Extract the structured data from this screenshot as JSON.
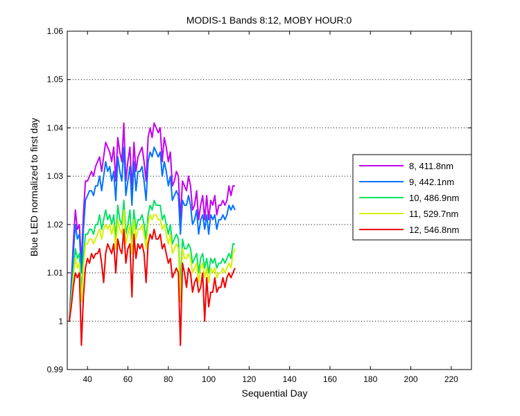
{
  "chart_data": {
    "type": "line",
    "title": "MODIS-1 Bands 8:12, MOBY HOUR:0",
    "xlabel": "Sequential Day",
    "ylabel": "Blue LED normalized to first day",
    "xlim": [
      30,
      230
    ],
    "ylim": [
      0.99,
      1.06
    ],
    "xticks": [
      40,
      60,
      80,
      100,
      120,
      140,
      160,
      180,
      200,
      220
    ],
    "yticks": [
      "0.99",
      "1",
      "1.01",
      "1.02",
      "1.03",
      "1.04",
      "1.05",
      "1.06"
    ],
    "ytick_values": [
      0.99,
      1.0,
      1.01,
      1.02,
      1.03,
      1.04,
      1.05,
      1.06
    ],
    "grid": "y-dotted",
    "legend_position": "right",
    "x": [
      31,
      32,
      33,
      34,
      35,
      36,
      37,
      38,
      39,
      40,
      41,
      42,
      43,
      44,
      45,
      46,
      47,
      48,
      49,
      50,
      51,
      52,
      53,
      54,
      55,
      56,
      57,
      58,
      59,
      60,
      61,
      62,
      63,
      64,
      65,
      66,
      67,
      68,
      69,
      70,
      71,
      72,
      73,
      74,
      75,
      76,
      77,
      78,
      79,
      80,
      81,
      82,
      83,
      84,
      85,
      86,
      87,
      88,
      89,
      90,
      91,
      92,
      93,
      94,
      95,
      96,
      97,
      98,
      99,
      100,
      101,
      102,
      103,
      104,
      105,
      106,
      107,
      108,
      109,
      110,
      111,
      112,
      113
    ],
    "series": [
      {
        "name": "8, 411.8nm",
        "color": "#c000f0",
        "values": [
          1.0,
          1.008,
          1.016,
          1.023,
          1.019,
          1.02,
          1.012,
          1.022,
          1.029,
          1.029,
          1.03,
          1.031,
          1.03,
          1.032,
          1.033,
          1.034,
          1.031,
          1.034,
          1.037,
          1.036,
          1.035,
          1.033,
          1.036,
          1.029,
          1.038,
          1.035,
          1.033,
          1.041,
          1.029,
          1.033,
          1.036,
          1.027,
          1.037,
          1.031,
          1.034,
          1.035,
          1.036,
          1.033,
          1.029,
          1.038,
          1.04,
          1.038,
          1.041,
          1.04,
          1.039,
          1.04,
          1.033,
          1.038,
          1.036,
          1.033,
          1.035,
          1.028,
          1.029,
          1.031,
          1.03,
          1.021,
          1.029,
          1.028,
          1.027,
          1.03,
          1.028,
          1.023,
          1.024,
          1.027,
          1.021,
          1.024,
          1.026,
          1.021,
          1.026,
          1.021,
          1.025,
          1.024,
          1.026,
          1.022,
          1.024,
          1.024,
          1.025,
          1.024,
          1.025,
          1.028,
          1.026,
          1.028,
          1.028
        ]
      },
      {
        "name": "9, 442.1nm",
        "color": "#0070ff",
        "values": [
          1.0,
          1.007,
          1.014,
          1.02,
          1.017,
          1.018,
          1.01,
          1.019,
          1.025,
          1.026,
          1.027,
          1.027,
          1.026,
          1.028,
          1.028,
          1.03,
          1.027,
          1.03,
          1.033,
          1.031,
          1.032,
          1.029,
          1.031,
          1.025,
          1.034,
          1.031,
          1.029,
          1.036,
          1.026,
          1.029,
          1.032,
          1.024,
          1.033,
          1.027,
          1.031,
          1.031,
          1.032,
          1.029,
          1.025,
          1.033,
          1.035,
          1.034,
          1.036,
          1.035,
          1.034,
          1.035,
          1.03,
          1.033,
          1.031,
          1.028,
          1.03,
          1.025,
          1.026,
          1.027,
          1.026,
          1.018,
          1.025,
          1.024,
          1.024,
          1.026,
          1.024,
          1.02,
          1.021,
          1.023,
          1.018,
          1.021,
          1.022,
          1.019,
          1.022,
          1.018,
          1.022,
          1.021,
          1.022,
          1.019,
          1.021,
          1.021,
          1.022,
          1.021,
          1.022,
          1.024,
          1.023,
          1.024,
          1.023
        ]
      },
      {
        "name": "10, 486.9nm",
        "color": "#00e060",
        "values": [
          1.0,
          1.005,
          1.01,
          1.015,
          1.013,
          1.014,
          1.006,
          1.013,
          1.018,
          1.018,
          1.019,
          1.019,
          1.018,
          1.02,
          1.02,
          1.022,
          1.019,
          1.021,
          1.023,
          1.021,
          1.022,
          1.02,
          1.022,
          1.017,
          1.024,
          1.021,
          1.02,
          1.025,
          1.018,
          1.02,
          1.023,
          1.016,
          1.023,
          1.019,
          1.021,
          1.021,
          1.022,
          1.02,
          1.017,
          1.022,
          1.024,
          1.023,
          1.025,
          1.024,
          1.024,
          1.024,
          1.021,
          1.022,
          1.02,
          1.018,
          1.02,
          1.016,
          1.017,
          1.018,
          1.017,
          1.007,
          1.017,
          1.015,
          1.015,
          1.016,
          1.015,
          1.012,
          1.013,
          1.014,
          1.01,
          1.013,
          1.014,
          1.011,
          1.013,
          1.01,
          1.013,
          1.012,
          1.013,
          1.011,
          1.012,
          1.012,
          1.013,
          1.012,
          1.013,
          1.014,
          1.013,
          1.016,
          1.016
        ]
      },
      {
        "name": "11, 529.7nm",
        "color": "#d8f000",
        "values": [
          1.0,
          1.004,
          1.009,
          1.013,
          1.011,
          1.012,
          1.004,
          1.011,
          1.016,
          1.016,
          1.017,
          1.017,
          1.016,
          1.017,
          1.018,
          1.019,
          1.017,
          1.019,
          1.02,
          1.019,
          1.02,
          1.018,
          1.02,
          1.015,
          1.021,
          1.019,
          1.018,
          1.023,
          1.016,
          1.018,
          1.02,
          1.014,
          1.021,
          1.017,
          1.019,
          1.019,
          1.02,
          1.018,
          1.015,
          1.02,
          1.022,
          1.021,
          1.022,
          1.022,
          1.021,
          1.021,
          1.019,
          1.02,
          1.018,
          1.016,
          1.018,
          1.014,
          1.015,
          1.016,
          1.015,
          1.004,
          1.015,
          1.013,
          1.013,
          1.014,
          1.013,
          1.01,
          1.011,
          1.012,
          1.008,
          1.011,
          1.012,
          1.009,
          1.011,
          1.008,
          1.011,
          1.01,
          1.011,
          1.009,
          1.01,
          1.01,
          1.011,
          1.01,
          1.011,
          1.012,
          1.011,
          1.014,
          1.015
        ]
      },
      {
        "name": "12, 546.8nm",
        "color": "#f00000",
        "values": [
          1.0,
          1.003,
          1.007,
          1.01,
          1.009,
          1.01,
          0.995,
          1.005,
          1.011,
          1.013,
          1.012,
          1.014,
          1.013,
          1.014,
          1.014,
          1.015,
          1.012,
          1.008,
          1.014,
          1.016,
          1.015,
          1.014,
          1.016,
          1.01,
          1.017,
          1.015,
          1.014,
          1.019,
          1.012,
          1.015,
          1.016,
          1.005,
          1.018,
          1.013,
          1.016,
          1.015,
          1.016,
          1.014,
          1.008,
          1.016,
          1.018,
          1.017,
          1.019,
          1.017,
          1.017,
          1.018,
          1.015,
          1.016,
          1.014,
          1.012,
          1.013,
          1.009,
          1.01,
          1.011,
          1.01,
          0.995,
          1.012,
          1.01,
          1.007,
          1.011,
          1.01,
          1.006,
          1.008,
          1.009,
          1.006,
          1.007,
          1.01,
          1.0,
          1.009,
          1.003,
          1.006,
          1.006,
          1.009,
          1.006,
          1.007,
          1.007,
          1.009,
          1.007,
          1.009,
          1.01,
          1.009,
          1.01,
          1.011
        ]
      }
    ]
  }
}
